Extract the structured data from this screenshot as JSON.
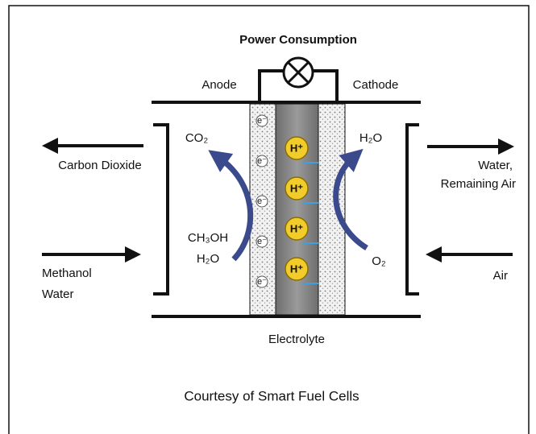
{
  "title": "Power Consumption",
  "electrodes": {
    "anode": "Anode",
    "cathode": "Cathode",
    "electrolyte": "Electrolyte"
  },
  "left_outlet_label": "Carbon Dioxide",
  "left_inlet_label": [
    "Methanol",
    "Water"
  ],
  "right_outlet_label": [
    "Water,",
    "Remaining Air"
  ],
  "right_inlet_label": "Air",
  "species": {
    "co2": "CO₂",
    "h2o_out": "H₂O",
    "methanol": "CH₃OH",
    "h2o_in": "H₂O",
    "o2": "O₂"
  },
  "protons": [
    "H⁺",
    "H⁺",
    "H⁺",
    "H⁺"
  ],
  "electrons": [
    "e⁻",
    "e⁻",
    "e⁻",
    "e⁻",
    "e⁻"
  ],
  "credit": "Courtesy of Smart Fuel Cells"
}
